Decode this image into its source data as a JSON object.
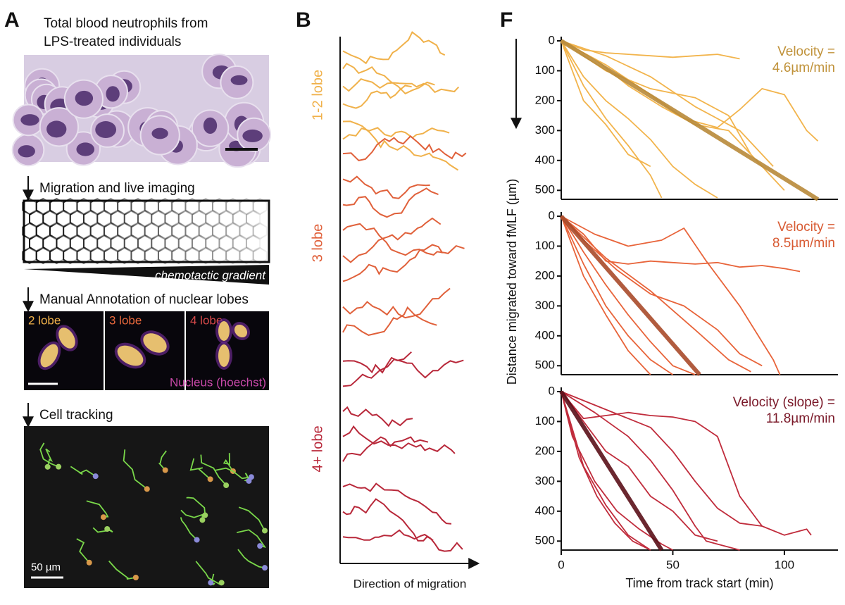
{
  "panel_a": {
    "label": "A",
    "title_lines": [
      "Total blood neutrophils from",
      "LPS-treated individuals"
    ],
    "steps": [
      "Migration and live imaging",
      "Manual Annotation of nuclear lobes",
      "Cell tracking"
    ],
    "gradient_label": "chemotactic gradient",
    "lobe_labels": [
      "2 lobe",
      "3 lobe",
      "4 lobe"
    ],
    "lobe_colors": [
      "#f0b14a",
      "#e8683c",
      "#d84a4a"
    ],
    "stain_label": "Nucleus (hoechst)",
    "scale_label": "50 µm"
  },
  "panel_b": {
    "label": "B",
    "groups": [
      "1-2 lobe",
      "3 lobe",
      "4+ lobe"
    ],
    "colors": [
      "#f0b14a",
      "#e0603a",
      "#b8283a"
    ],
    "xlabel": "Direction of migration"
  },
  "panel_f": {
    "label": "F",
    "ylabel": "Distance migrated toward fMLF (µm)"
  },
  "chart_data": [
    {
      "type": "line",
      "annotation": [
        "Velocity =",
        "4.6µm/min"
      ],
      "annotation_color": "#c0923a",
      "xlim": [
        0,
        124
      ],
      "ylim": [
        0,
        530
      ],
      "y_inverted": true,
      "yticks": [
        0,
        100,
        200,
        300,
        400,
        500
      ],
      "series": [
        {
          "color": "#f2b44c",
          "x": [
            0,
            10,
            20,
            30,
            40,
            50,
            60,
            70,
            80
          ],
          "values": [
            0,
            30,
            40,
            45,
            50,
            55,
            50,
            45,
            60
          ]
        },
        {
          "color": "#f2b44c",
          "x": [
            0,
            10,
            20,
            30,
            40,
            50,
            60,
            70
          ],
          "values": [
            0,
            120,
            200,
            260,
            330,
            420,
            480,
            525
          ]
        },
        {
          "color": "#f2b44c",
          "x": [
            0,
            15,
            30,
            45,
            60,
            75,
            90,
            100
          ],
          "values": [
            0,
            60,
            150,
            220,
            280,
            300,
            420,
            500
          ]
        },
        {
          "color": "#f2b44c",
          "x": [
            0,
            20,
            40,
            55,
            70,
            80,
            90,
            100,
            110,
            115
          ],
          "values": [
            0,
            80,
            180,
            260,
            290,
            230,
            160,
            180,
            300,
            335
          ]
        },
        {
          "color": "#f2b44c",
          "x": [
            0,
            10,
            20,
            30,
            40,
            45
          ],
          "values": [
            0,
            150,
            260,
            350,
            450,
            525
          ]
        },
        {
          "color": "#f2b44c",
          "x": [
            0,
            20,
            40,
            60,
            75,
            85
          ],
          "values": [
            0,
            100,
            160,
            190,
            250,
            380
          ]
        },
        {
          "color": "#f2b44c",
          "x": [
            0,
            5,
            10,
            20,
            30,
            40
          ],
          "values": [
            0,
            100,
            200,
            280,
            380,
            420
          ]
        },
        {
          "color": "#f2b44c",
          "x": [
            0,
            20,
            40,
            60,
            80,
            95
          ],
          "values": [
            0,
            50,
            120,
            220,
            300,
            420
          ]
        },
        {
          "color": "#b8893a",
          "style": "fit",
          "x": [
            0,
            115
          ],
          "values": [
            0,
            530
          ]
        }
      ]
    },
    {
      "type": "line",
      "annotation": [
        "Velocity =",
        "8.5µm/min"
      ],
      "annotation_color": "#d85a32",
      "xlim": [
        0,
        124
      ],
      "ylim": [
        0,
        530
      ],
      "y_inverted": true,
      "yticks": [
        0,
        100,
        200,
        300,
        400,
        500
      ],
      "series": [
        {
          "color": "#e8643a",
          "x": [
            0,
            10,
            20,
            30,
            40,
            50,
            60,
            70,
            80,
            90,
            100,
            107
          ],
          "values": [
            0,
            60,
            150,
            160,
            150,
            155,
            160,
            155,
            170,
            165,
            175,
            185
          ]
        },
        {
          "color": "#e8643a",
          "x": [
            0,
            10,
            20,
            30,
            40,
            50,
            60
          ],
          "values": [
            0,
            120,
            230,
            330,
            420,
            500,
            530
          ]
        },
        {
          "color": "#e8643a",
          "x": [
            0,
            15,
            30,
            45,
            55,
            65,
            80,
            95,
            98
          ],
          "values": [
            0,
            60,
            100,
            80,
            40,
            150,
            300,
            480,
            530
          ]
        },
        {
          "color": "#e8643a",
          "x": [
            0,
            10,
            20,
            30,
            40,
            50
          ],
          "values": [
            0,
            160,
            300,
            400,
            480,
            530
          ]
        },
        {
          "color": "#e8643a",
          "x": [
            0,
            20,
            40,
            60,
            75,
            85
          ],
          "values": [
            0,
            140,
            250,
            380,
            480,
            520
          ]
        },
        {
          "color": "#e8643a",
          "x": [
            0,
            10,
            25,
            40,
            55,
            70,
            80,
            90
          ],
          "values": [
            0,
            80,
            180,
            260,
            300,
            380,
            460,
            500
          ]
        },
        {
          "color": "#e8643a",
          "x": [
            0,
            10,
            20,
            30,
            40
          ],
          "values": [
            0,
            200,
            330,
            450,
            530
          ]
        },
        {
          "color": "#a84a2a",
          "style": "fit",
          "x": [
            0,
            62
          ],
          "values": [
            0,
            530
          ]
        }
      ]
    },
    {
      "type": "line",
      "annotation": [
        "Velocity (slope) =",
        "11.8µm/min"
      ],
      "annotation_color": "#7a1828",
      "xlim": [
        0,
        124
      ],
      "ylim": [
        0,
        530
      ],
      "y_inverted": true,
      "yticks": [
        0,
        100,
        200,
        300,
        400,
        500
      ],
      "xticks": [
        0,
        50,
        100
      ],
      "xlabel": "Time from track start (min)",
      "series": [
        {
          "color": "#c02c3c",
          "x": [
            0,
            10,
            20,
            30,
            40,
            50,
            60,
            70,
            80,
            90,
            100,
            110,
            112
          ],
          "values": [
            0,
            90,
            80,
            70,
            80,
            85,
            100,
            150,
            350,
            450,
            480,
            460,
            480
          ]
        },
        {
          "color": "#c02c3c",
          "x": [
            0,
            10,
            20,
            30,
            40
          ],
          "values": [
            0,
            250,
            380,
            480,
            530
          ]
        },
        {
          "color": "#c02c3c",
          "x": [
            0,
            15,
            30,
            40,
            50,
            60,
            65,
            75,
            80
          ],
          "values": [
            0,
            70,
            150,
            230,
            330,
            450,
            500,
            520,
            530
          ]
        },
        {
          "color": "#c02c3c",
          "x": [
            0,
            5,
            15,
            25,
            35,
            45,
            50
          ],
          "values": [
            0,
            150,
            300,
            400,
            460,
            510,
            530
          ]
        },
        {
          "color": "#c02c3c",
          "x": [
            0,
            10,
            20,
            30,
            40,
            50,
            60,
            70
          ],
          "values": [
            0,
            100,
            200,
            250,
            350,
            400,
            480,
            500
          ]
        },
        {
          "color": "#c02c3c",
          "x": [
            0,
            8,
            16,
            24,
            32,
            40
          ],
          "values": [
            0,
            220,
            350,
            440,
            500,
            530
          ]
        },
        {
          "color": "#c02c3c",
          "x": [
            0,
            20,
            40,
            50,
            60,
            70,
            80,
            90
          ],
          "values": [
            0,
            60,
            120,
            200,
            300,
            390,
            440,
            450
          ]
        },
        {
          "color": "#5a1018",
          "style": "fit",
          "x": [
            0,
            45
          ],
          "values": [
            0,
            530
          ]
        }
      ]
    }
  ]
}
